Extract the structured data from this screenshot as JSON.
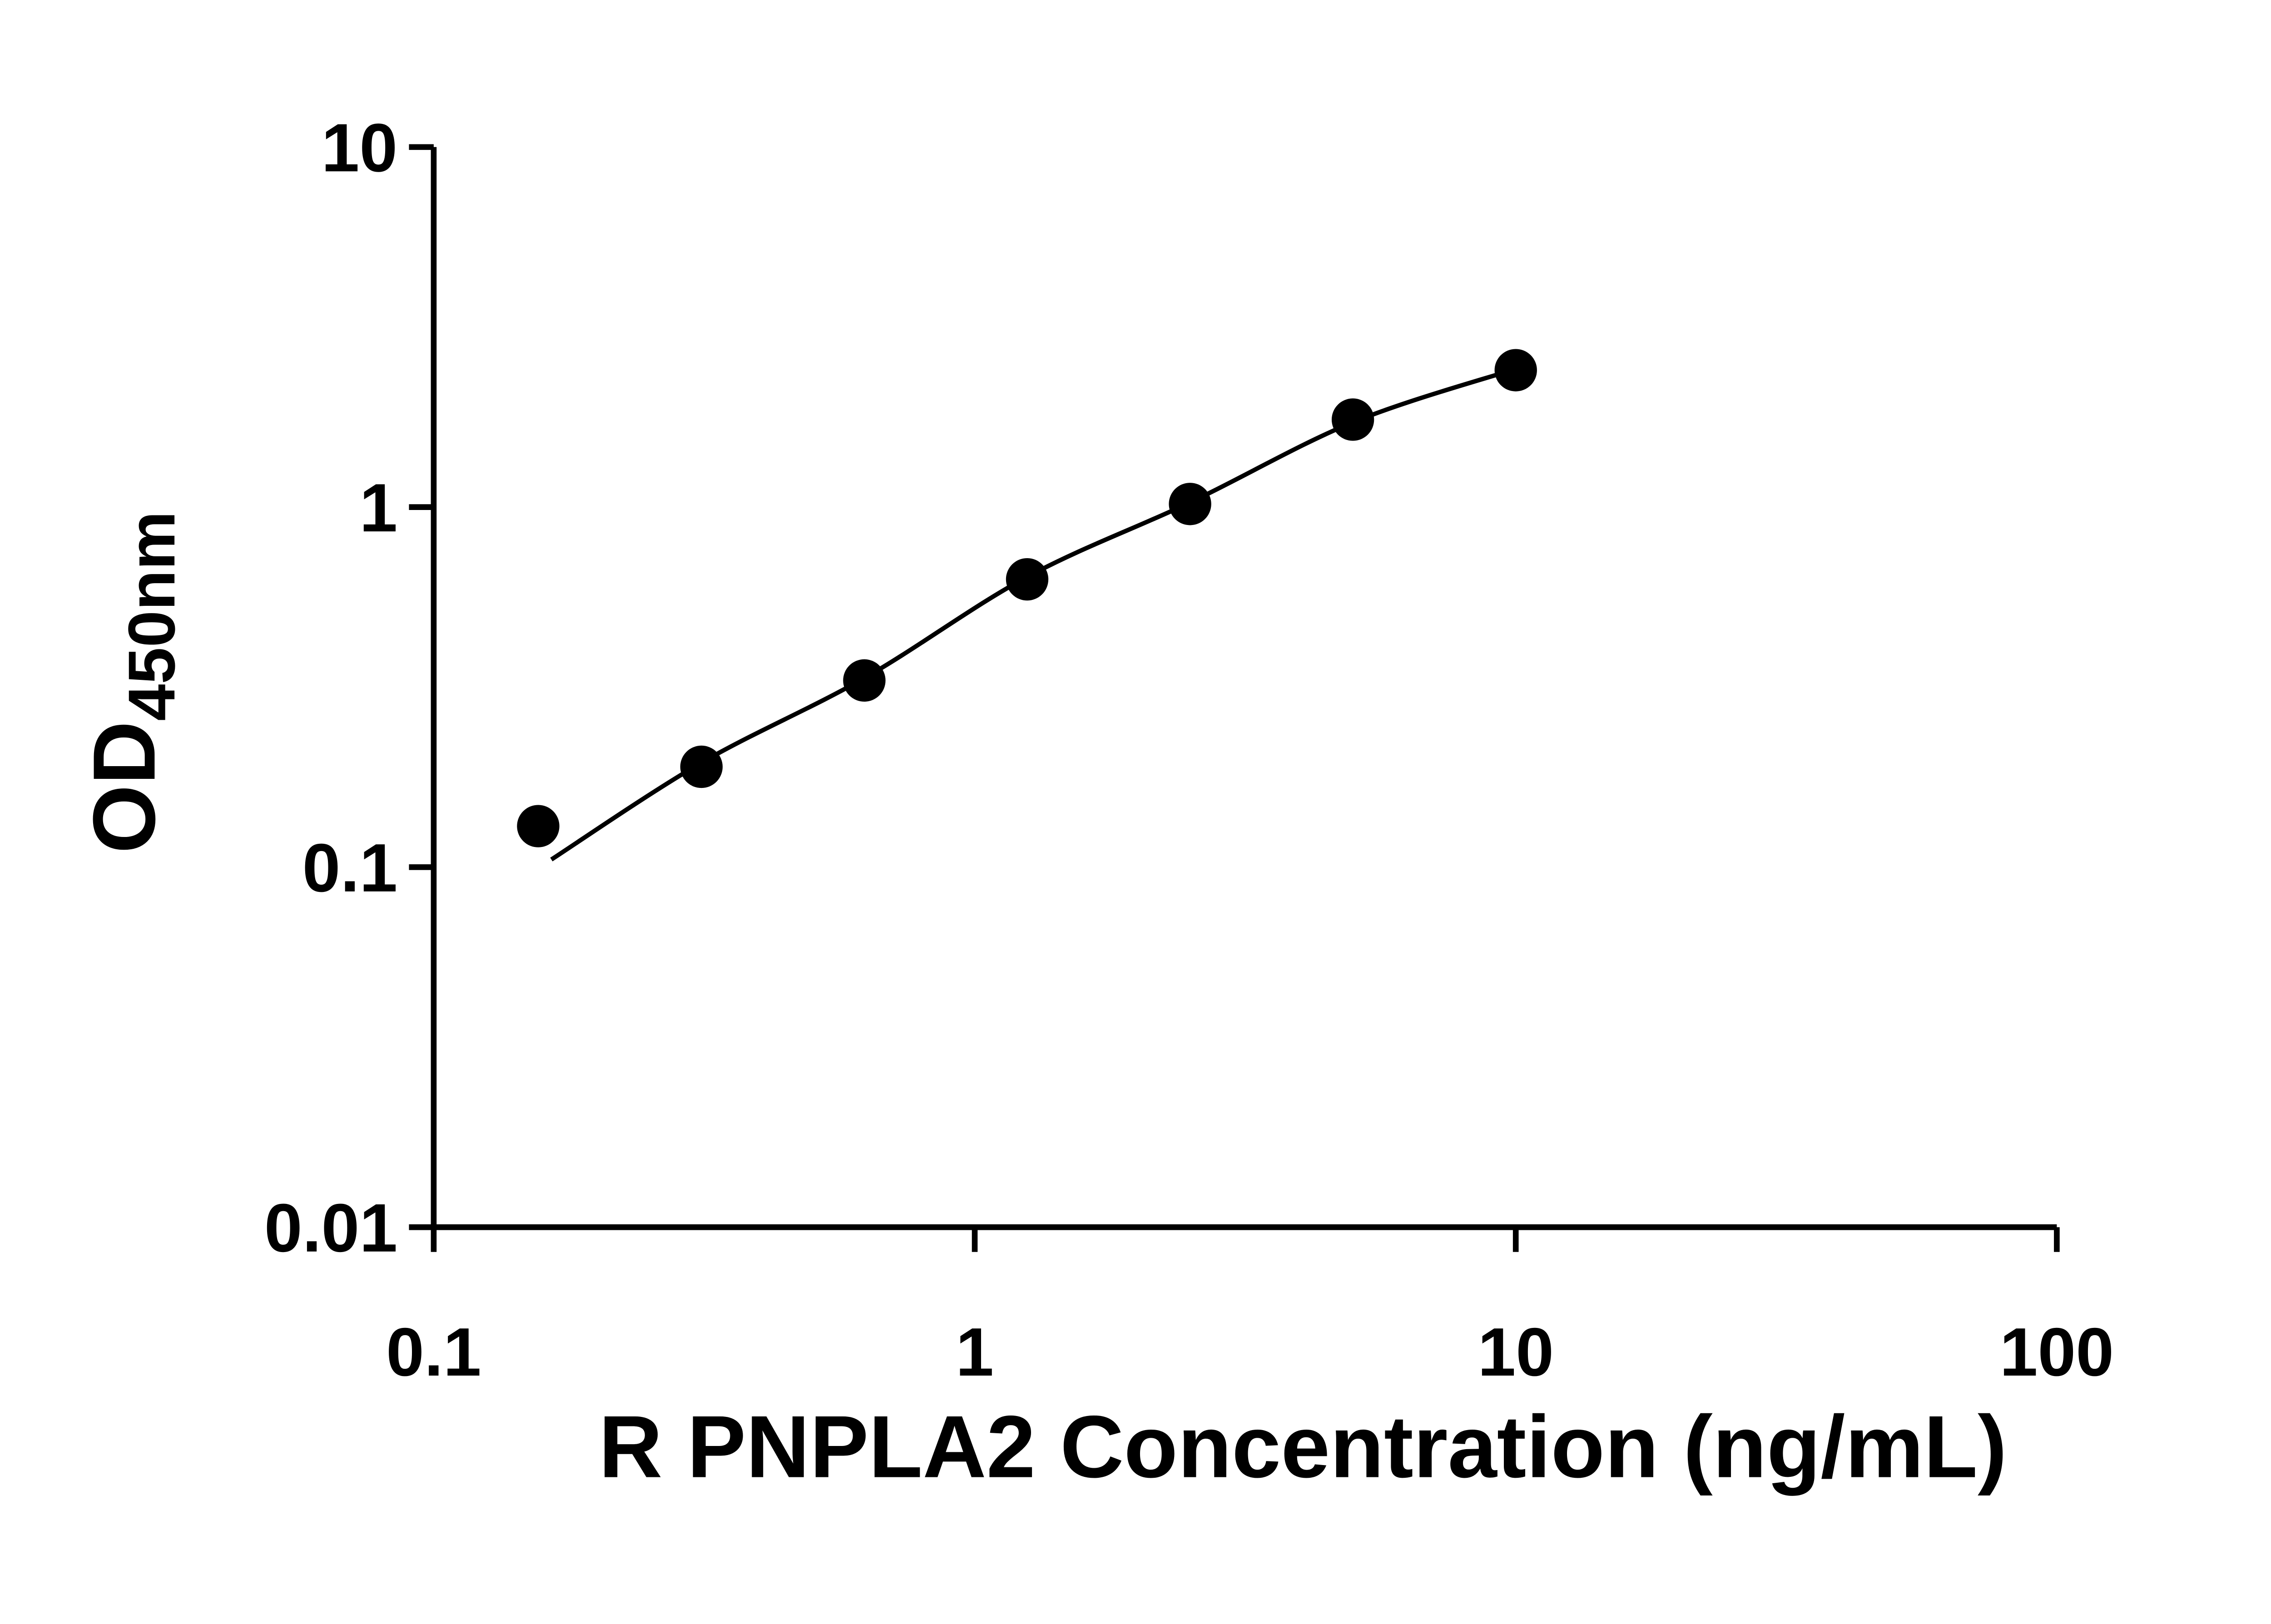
{
  "figure": {
    "background": "#ffffff"
  },
  "chart_data": {
    "type": "scatter",
    "title": "",
    "xlabel": "R PNPLA2 Concentration (ng/mL)",
    "ylabel": "OD450nm",
    "ylabel_main": "OD",
    "ylabel_sub": "450nm",
    "x_scale": "log",
    "y_scale": "log",
    "xlim": [
      0.1,
      100
    ],
    "ylim": [
      0.01,
      10
    ],
    "grid": false,
    "legend": false,
    "x_ticks": [
      {
        "value": 0.1,
        "label": "0.1"
      },
      {
        "value": 1,
        "label": "1"
      },
      {
        "value": 10,
        "label": "10"
      },
      {
        "value": 100,
        "label": "100"
      }
    ],
    "y_ticks": [
      {
        "value": 10,
        "label": "10"
      },
      {
        "value": 1,
        "label": "1"
      },
      {
        "value": 0.1,
        "label": "0.1"
      },
      {
        "value": 0.01,
        "label": "0.01"
      }
    ],
    "x": [
      0.156,
      0.3125,
      0.625,
      1.25,
      2.5,
      5,
      10
    ],
    "y": [
      0.13,
      0.19,
      0.33,
      0.63,
      1.02,
      1.75,
      2.4
    ],
    "trend_line": [
      [
        0.165,
        0.105
      ],
      [
        0.3125,
        0.195
      ],
      [
        0.625,
        0.335
      ],
      [
        1.25,
        0.64
      ],
      [
        2.5,
        1.03
      ],
      [
        5,
        1.72
      ],
      [
        10,
        2.42
      ]
    ],
    "point_color": "#000000",
    "line_color": "#000000",
    "axis_color": "#000000"
  }
}
